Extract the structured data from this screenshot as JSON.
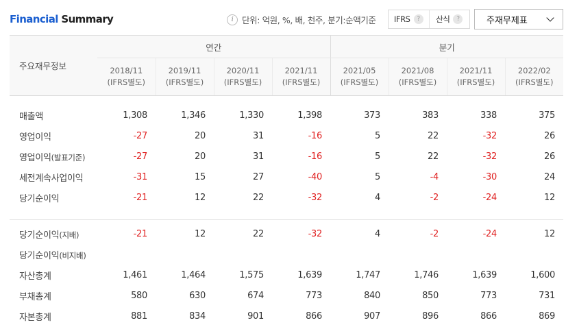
{
  "header": {
    "title_part1": "Financial",
    "title_part2": "Summary",
    "unit_text": "단위: 억원, %, 배, 천주, 분기:순액기준",
    "toggle": {
      "opt1": "IFRS",
      "opt2": "산식",
      "help": "?"
    },
    "select_value": "주재무제표",
    "info_glyph": "i"
  },
  "table": {
    "row_label_header": "주요재무정보",
    "group_annual": "연간",
    "group_quarter": "분기",
    "periods": [
      {
        "date": "2018/11",
        "basis": "(IFRS별도)"
      },
      {
        "date": "2019/11",
        "basis": "(IFRS별도)"
      },
      {
        "date": "2020/11",
        "basis": "(IFRS별도)"
      },
      {
        "date": "2021/11",
        "basis": "(IFRS별도)"
      },
      {
        "date": "2021/05",
        "basis": "(IFRS별도)"
      },
      {
        "date": "2021/08",
        "basis": "(IFRS별도)"
      },
      {
        "date": "2021/11",
        "basis": "(IFRS별도)"
      },
      {
        "date": "2022/02",
        "basis": "(IFRS별도)"
      }
    ],
    "rows": [
      {
        "label": "매출액",
        "sub": "",
        "values": [
          "1,308",
          "1,346",
          "1,330",
          "1,398",
          "373",
          "383",
          "338",
          "375"
        ]
      },
      {
        "label": "영업이익",
        "sub": "",
        "values": [
          "-27",
          "20",
          "31",
          "-16",
          "5",
          "22",
          "-32",
          "26"
        ]
      },
      {
        "label": "영업이익",
        "sub": "(발표기준)",
        "values": [
          "-27",
          "20",
          "31",
          "-16",
          "5",
          "22",
          "-32",
          "26"
        ]
      },
      {
        "label": "세전계속사업이익",
        "sub": "",
        "values": [
          "-31",
          "15",
          "27",
          "-40",
          "5",
          "-4",
          "-30",
          "24"
        ]
      },
      {
        "label": "당기순이익",
        "sub": "",
        "values": [
          "-21",
          "12",
          "22",
          "-32",
          "4",
          "-2",
          "-24",
          "12"
        ]
      },
      {
        "label": "당기순이익",
        "sub": "(지배)",
        "values": [
          "-21",
          "12",
          "22",
          "-32",
          "4",
          "-2",
          "-24",
          "12"
        ]
      },
      {
        "label": "당기순이익",
        "sub": "(비지배)",
        "values": [
          "",
          "",
          "",
          "",
          "",
          "",
          "",
          ""
        ]
      },
      {
        "label": "자산총계",
        "sub": "",
        "values": [
          "1,461",
          "1,464",
          "1,575",
          "1,639",
          "1,747",
          "1,746",
          "1,639",
          "1,600"
        ]
      },
      {
        "label": "부채총계",
        "sub": "",
        "values": [
          "580",
          "630",
          "674",
          "773",
          "840",
          "850",
          "773",
          "731"
        ]
      },
      {
        "label": "자본총계",
        "sub": "",
        "values": [
          "881",
          "834",
          "901",
          "866",
          "907",
          "896",
          "866",
          "869"
        ]
      }
    ]
  }
}
